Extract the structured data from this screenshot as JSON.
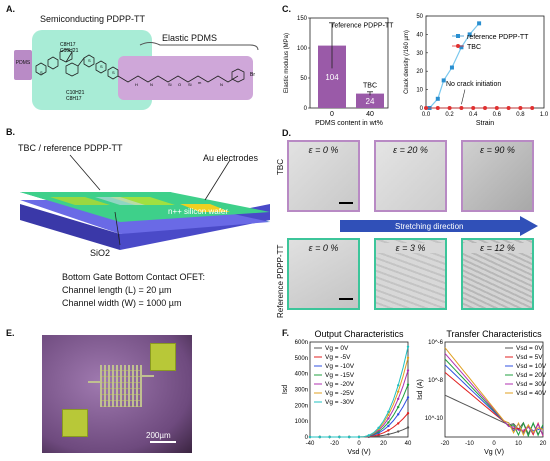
{
  "panels": {
    "A": {
      "label": "A.",
      "pdms_tag": "PDMS",
      "semi_title": "Semiconducting PDPP-TT",
      "elastic_title": "Elastic PDMS",
      "chain_top": "C8H17",
      "chain_top2": "C10H21",
      "chain_bot": "C10H21",
      "chain_bot2": "C8H17",
      "m_label": "m",
      "br_label": "Br"
    },
    "B": {
      "label": "B.",
      "tbc_label": "TBC / reference PDPP-TT",
      "au_label": "Au electrodes",
      "wafer_label": "n++ silicon wafer",
      "sio2_label": "SiO2",
      "ofet_title": "Bottom Gate Bottom Contact OFET:",
      "channel_length": "Channel length (L) = 20 µm",
      "channel_width": "Channel width (W) = 1000 µm"
    },
    "C": {
      "label": "C."
    },
    "D": {
      "label": "D.",
      "tbc_row": "TBC",
      "ref_row": "Reference PDPP-TT",
      "direction": "Stretching direction",
      "strains_top": [
        "ε = 0 %",
        "ε = 20 %",
        "ε = 90 %"
      ],
      "strains_bottom": [
        "ε = 0 %",
        "ε = 3 %",
        "ε = 12 %"
      ]
    },
    "E": {
      "label": "E.",
      "scale": "200µm"
    },
    "F": {
      "label": "F."
    }
  },
  "chart_data": [
    {
      "type": "bar",
      "ylabel": "Elastic modulus (MPa)",
      "xlabel": "PDMS content in wt%",
      "categories": [
        "0",
        "40"
      ],
      "values": [
        104,
        24
      ],
      "errors": [
        38,
        3
      ],
      "bar_labels": [
        "reference PDPP-TT",
        "TBC"
      ],
      "ylim": [
        0,
        150
      ],
      "yticks": [
        0,
        50,
        100,
        150
      ],
      "colors": [
        "#9a5aa8",
        "#9a5aa8"
      ]
    },
    {
      "type": "scatter",
      "ylabel": "Crack density (/160 µm)",
      "xlabel": "Strain",
      "xlim": [
        0,
        1.0
      ],
      "ylim": [
        0,
        50
      ],
      "xticks": [
        0.0,
        0.2,
        0.4,
        0.6,
        0.8,
        1.0
      ],
      "yticks": [
        0,
        10,
        20,
        30,
        40,
        50
      ],
      "annotation": "No crack initiation",
      "series": [
        {
          "name": "reference PDPP-TT",
          "color": "#2a8fd0",
          "x": [
            0.03,
            0.1,
            0.15,
            0.22,
            0.3,
            0.37,
            0.45
          ],
          "y": [
            0,
            5,
            15,
            22,
            33,
            40,
            46
          ]
        },
        {
          "name": "TBC",
          "color": "#e03030",
          "x": [
            0.0,
            0.1,
            0.2,
            0.3,
            0.4,
            0.5,
            0.6,
            0.7,
            0.8,
            0.9
          ],
          "y": [
            0,
            0,
            0,
            0,
            0,
            0,
            0,
            0,
            0,
            0
          ]
        }
      ]
    },
    {
      "type": "line",
      "title": "Output Characteristics",
      "xlabel": "Vsd (V)",
      "ylabel": "Isd",
      "xlim": [
        -40,
        40
      ],
      "ylim": [
        0,
        600
      ],
      "xticks": [
        -40,
        -20,
        0,
        20,
        40
      ],
      "yticks": [
        0,
        100,
        200,
        300,
        400,
        500,
        600
      ],
      "ytick_labels": [
        "0",
        "100n",
        "200n",
        "300n",
        "400n",
        "500n",
        "600n"
      ],
      "series": [
        {
          "name": "Vg = 0V",
          "color": "#555555",
          "end": 60
        },
        {
          "name": "Vg = -5V",
          "color": "#e02020",
          "end": 150
        },
        {
          "name": "Vg = -10V",
          "color": "#3050e0",
          "end": 250
        },
        {
          "name": "Vg = -15V",
          "color": "#20a040",
          "end": 330
        },
        {
          "name": "Vg = -20V",
          "color": "#b030b0",
          "end": 420
        },
        {
          "name": "Vg = -25V",
          "color": "#e0a020",
          "end": 500
        },
        {
          "name": "Vg = -30V",
          "color": "#20c0c0",
          "end": 570
        }
      ]
    },
    {
      "type": "line",
      "title": "Transfer Characteristics",
      "xlabel": "Vg (V)",
      "ylabel": "Isd (A)",
      "xlim": [
        -20,
        20
      ],
      "ylim_exp": [
        -11,
        -6
      ],
      "xticks": [
        -20,
        -10,
        0,
        10,
        20
      ],
      "ytick_labels": [
        "10^-10",
        "10^-8",
        "10^-6"
      ],
      "series": [
        {
          "name": "Vsd = 0V",
          "color": "#555555",
          "start_exp": -8.8
        },
        {
          "name": "Vsd = 5V",
          "color": "#e02020",
          "start_exp": -7.6
        },
        {
          "name": "Vsd = 10V",
          "color": "#3050e0",
          "start_exp": -7.2
        },
        {
          "name": "Vsd = 20V",
          "color": "#20a040",
          "start_exp": -6.9
        },
        {
          "name": "Vsd = 30V",
          "color": "#b030b0",
          "start_exp": -6.6
        },
        {
          "name": "Vsd = 40V",
          "color": "#e0a020",
          "start_exp": -6.3
        }
      ]
    }
  ]
}
